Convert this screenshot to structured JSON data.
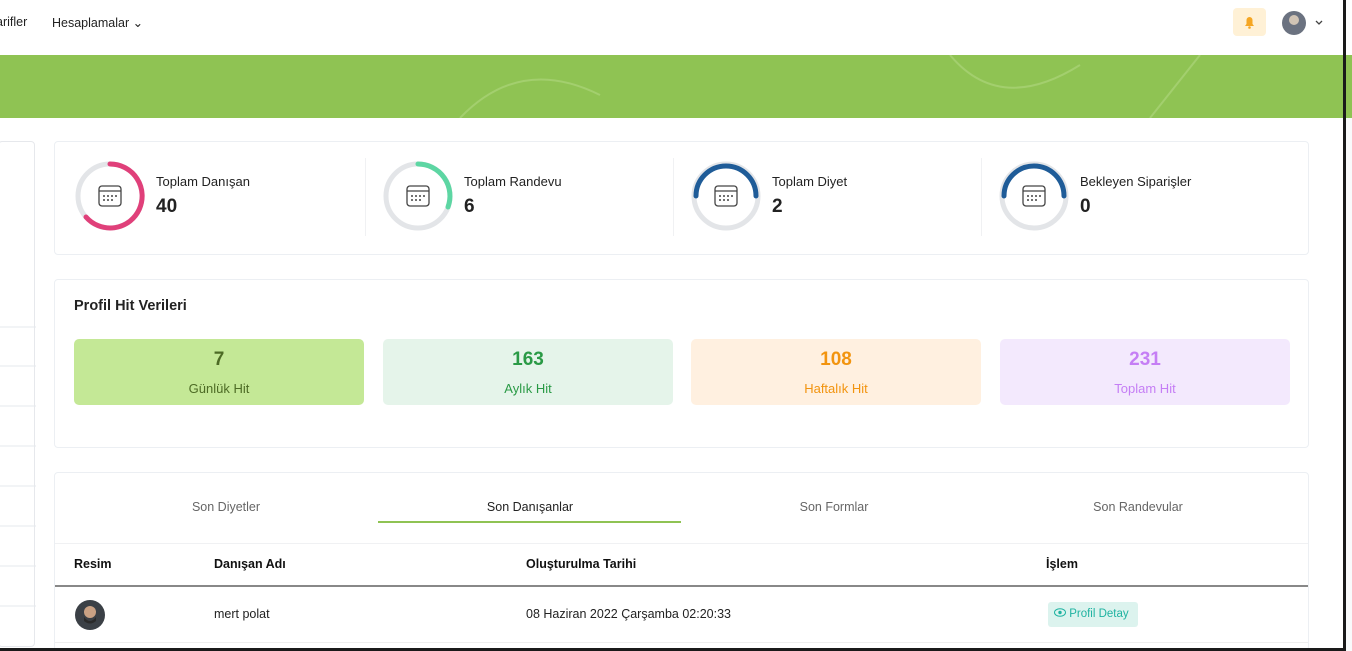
{
  "nav": {
    "items": [
      "arifler",
      "Hesaplamalar"
    ]
  },
  "stats": [
    {
      "label": "Toplam Danışan",
      "value": "40"
    },
    {
      "label": "Toplam Randevu",
      "value": "6"
    },
    {
      "label": "Toplam Diyet",
      "value": "2"
    },
    {
      "label": "Bekleyen Siparişler",
      "value": "0"
    }
  ],
  "hits": {
    "title": "Profil Hit Verileri",
    "items": [
      {
        "value": "7",
        "label": "Günlük Hit"
      },
      {
        "value": "163",
        "label": "Aylık Hit"
      },
      {
        "value": "108",
        "label": "Haftalık Hit"
      },
      {
        "value": "231",
        "label": "Toplam Hit"
      }
    ]
  },
  "tabs": [
    "Son Diyetler",
    "Son Danışanlar",
    "Son Formlar",
    "Son Randevular"
  ],
  "table": {
    "headers": [
      "Resim",
      "Danışan Adı",
      "Oluşturulma Tarihi",
      "İşlem"
    ],
    "rows": [
      {
        "name": "mert polat",
        "date": "08 Haziran 2022 Çarşamba 02:20:33",
        "action": "Profil Detay"
      }
    ]
  }
}
